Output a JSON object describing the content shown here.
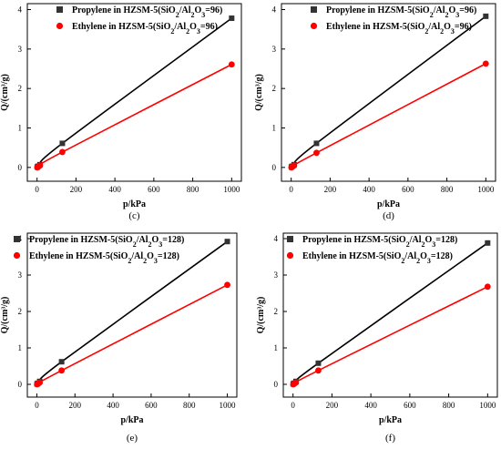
{
  "chart_data": [
    {
      "type": "scatter",
      "panel_label": "(c)",
      "xlabel": "p/kPa",
      "ylabel": "Q/(cm³/g)",
      "xlim": [
        -50,
        1050
      ],
      "ylim": [
        -0.35,
        4.15
      ],
      "x_ticks": [
        0,
        200,
        400,
        600,
        800,
        1000
      ],
      "y_ticks": [
        0,
        1,
        2,
        3,
        4
      ],
      "legend_position": "top-right",
      "series": [
        {
          "name": "Propylene in HZSM-5(SiO₂/Al₂O₃=96)",
          "color": "#000000",
          "marker": "square",
          "x": [
            1,
            5,
            15,
            130,
            1000
          ],
          "y": [
            0.01,
            0.03,
            0.07,
            0.61,
            3.78
          ]
        },
        {
          "name": "Ethylene in HZSM-5(SiO₂/Al₂O₃=96)",
          "color": "#ff0000",
          "marker": "circle",
          "x": [
            1,
            5,
            15,
            130,
            1000
          ],
          "y": [
            0.0,
            0.02,
            0.05,
            0.39,
            2.61
          ]
        }
      ]
    },
    {
      "type": "scatter",
      "panel_label": "(d)",
      "xlabel": "p/kPa",
      "ylabel": "Q/(cm³/g)",
      "xlim": [
        -50,
        1050
      ],
      "ylim": [
        -0.35,
        4.15
      ],
      "x_ticks": [
        0,
        200,
        400,
        600,
        800,
        1000
      ],
      "y_ticks": [
        0,
        1,
        2,
        3,
        4
      ],
      "legend_position": "top-right",
      "series": [
        {
          "name": "Propylene in HZSM-5(SiO₂/Al₂O₃=96)",
          "color": "#000000",
          "marker": "square",
          "x": [
            1,
            5,
            15,
            130,
            1000
          ],
          "y": [
            0.01,
            0.03,
            0.07,
            0.61,
            3.83
          ]
        },
        {
          "name": "Ethylene in HZSM-5(SiO₂/Al₂O₃=96)",
          "color": "#ff0000",
          "marker": "circle",
          "x": [
            1,
            5,
            15,
            130,
            1000
          ],
          "y": [
            0.0,
            0.02,
            0.05,
            0.37,
            2.63
          ]
        }
      ]
    },
    {
      "type": "scatter",
      "panel_label": "(e)",
      "xlabel": "p/kPa",
      "ylabel": "Q/(cm³/g)",
      "xlim": [
        -50,
        1050
      ],
      "ylim": [
        -0.35,
        4.15
      ],
      "x_ticks": [
        0,
        200,
        400,
        600,
        800,
        1000
      ],
      "y_ticks": [
        0,
        1,
        2,
        3,
        4
      ],
      "legend_position": "top-left",
      "series": [
        {
          "name": "Propylene in HZSM-5(SiO₂/Al₂O₃=128)",
          "color": "#000000",
          "marker": "square",
          "x": [
            1,
            5,
            15,
            130,
            1000
          ],
          "y": [
            0.01,
            0.03,
            0.08,
            0.62,
            3.92
          ]
        },
        {
          "name": "Ethylene in HZSM-5(SiO₂/Al₂O₃=128)",
          "color": "#ff0000",
          "marker": "circle",
          "x": [
            1,
            5,
            15,
            130,
            1000
          ],
          "y": [
            0.0,
            0.02,
            0.05,
            0.38,
            2.73
          ]
        }
      ]
    },
    {
      "type": "scatter",
      "panel_label": "(f)",
      "xlabel": "p/kPa",
      "ylabel": "Q/(cm³/g)",
      "xlim": [
        -50,
        1050
      ],
      "ylim": [
        -0.35,
        4.15
      ],
      "x_ticks": [
        0,
        200,
        400,
        600,
        800,
        1000
      ],
      "y_ticks": [
        0,
        1,
        2,
        3,
        4
      ],
      "legend_position": "top-left",
      "series": [
        {
          "name": "Propylene in HZSM-5(SiO₂/Al₂O₃=128)",
          "color": "#000000",
          "marker": "square",
          "x": [
            1,
            5,
            15,
            130,
            1000
          ],
          "y": [
            0.01,
            0.03,
            0.08,
            0.58,
            3.88
          ]
        },
        {
          "name": "Ethylene in HZSM-5(SiO₂/Al₂O₃=128)",
          "color": "#ff0000",
          "marker": "circle",
          "x": [
            1,
            5,
            15,
            130,
            1000
          ],
          "y": [
            0.0,
            0.02,
            0.05,
            0.38,
            2.68
          ]
        }
      ]
    }
  ]
}
